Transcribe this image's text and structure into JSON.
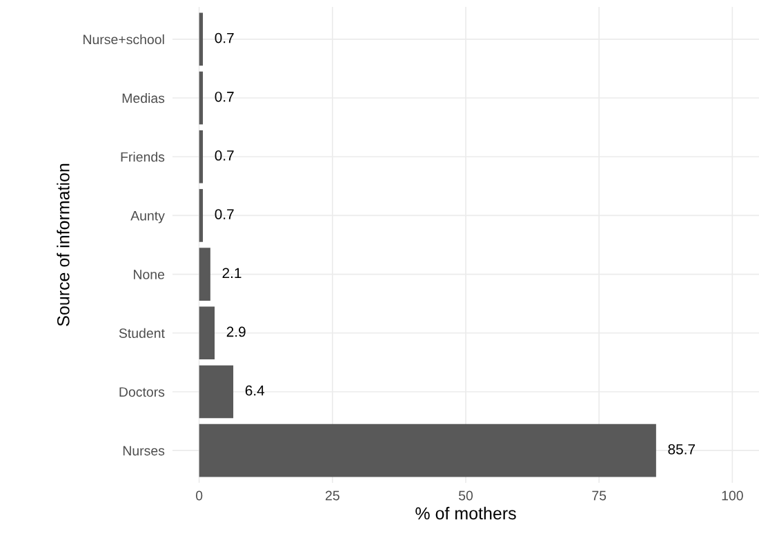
{
  "chart_data": {
    "type": "bar",
    "orientation": "horizontal",
    "xlabel": "% of mothers",
    "ylabel": "Source of information",
    "categories": [
      "Nurse+school",
      "Medias",
      "Friends",
      "Aunty",
      "None",
      "Student",
      "Doctors",
      "Nurses"
    ],
    "values": [
      0.7,
      0.7,
      0.7,
      0.7,
      2.1,
      2.9,
      6.4,
      85.7
    ],
    "color": "#595959",
    "xlim": [
      -5,
      105
    ],
    "xticks": [
      0,
      25,
      50,
      75,
      100
    ],
    "grid": true,
    "data_labels": true
  }
}
